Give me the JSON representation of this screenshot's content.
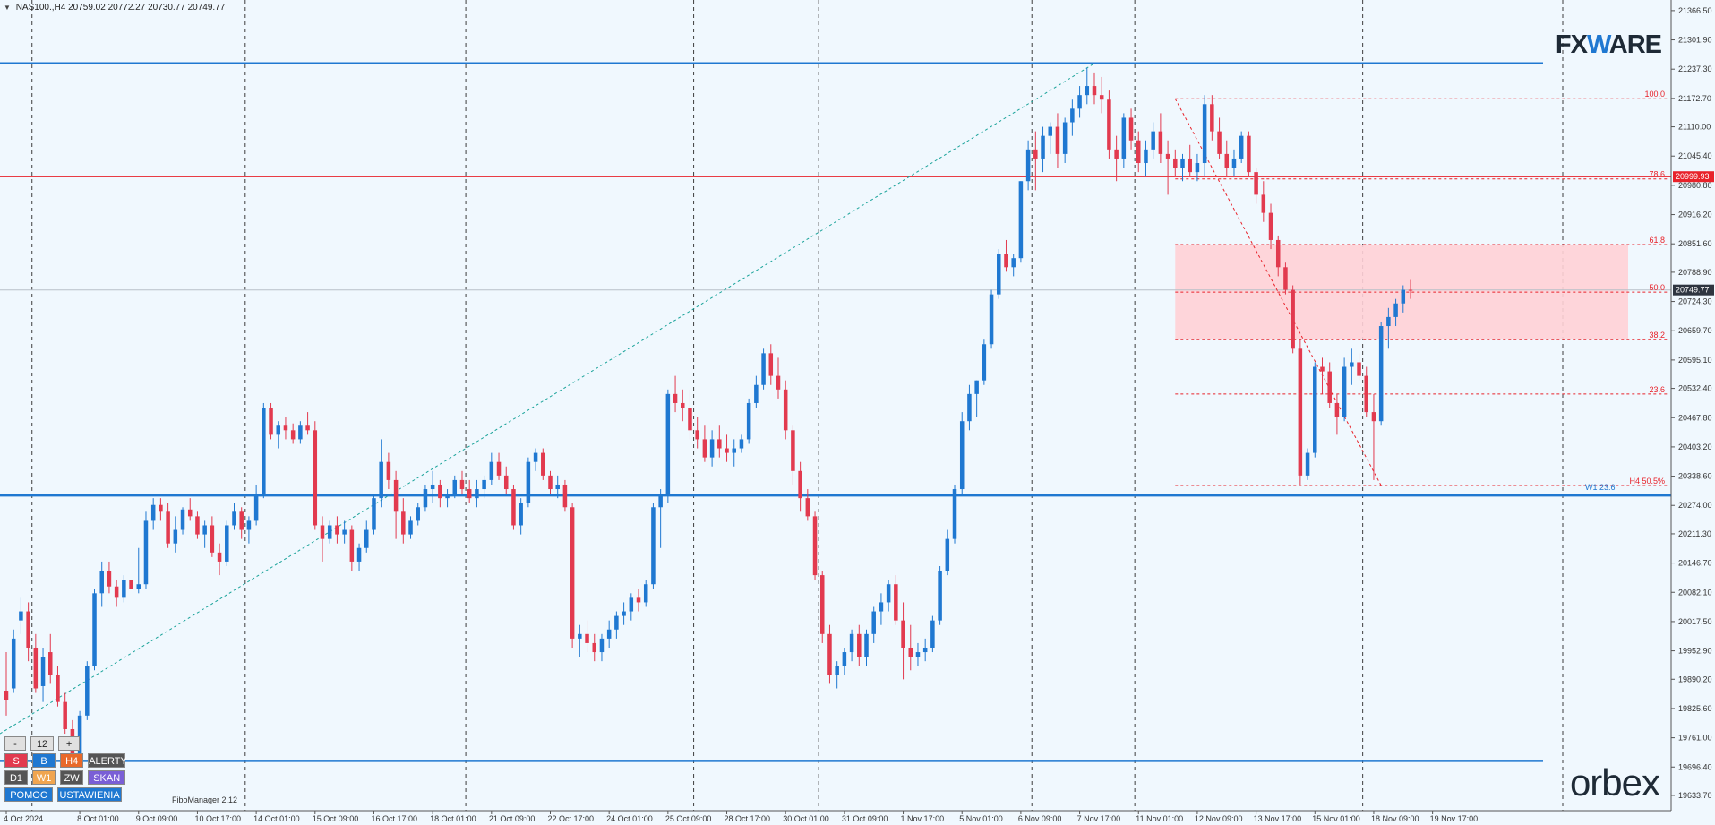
{
  "header": {
    "symbol": "NAS100.,H4",
    "open": "20759.02",
    "high": "20772.27",
    "low": "20730.77",
    "close": "20749.77"
  },
  "brand": {
    "fx_left": "FX",
    "fx_mid": "W",
    "fx_right": "ARE",
    "footer_logo": "orbex"
  },
  "chart_data": {
    "type": "candlestick",
    "ylim": [
      19600.0,
      21390.0
    ],
    "price_ticks": [
      "21366.50",
      "21301.90",
      "21237.30",
      "21172.70",
      "21110.00",
      "21045.40",
      "20980.80",
      "20916.20",
      "20851.60",
      "20788.90",
      "20724.30",
      "20659.70",
      "20595.10",
      "20532.40",
      "20467.80",
      "20403.20",
      "20338.60",
      "20274.00",
      "20211.30",
      "20146.70",
      "20082.10",
      "20017.50",
      "19952.90",
      "19890.20",
      "19825.60",
      "19761.00",
      "19696.40",
      "19633.70"
    ],
    "time_labels": [
      {
        "label": "4 Oct 2024",
        "bar": 0
      },
      {
        "label": "8 Oct 01:00",
        "bar": 10
      },
      {
        "label": "9 Oct 09:00",
        "bar": 18
      },
      {
        "label": "10 Oct 17:00",
        "bar": 26
      },
      {
        "label": "14 Oct 01:00",
        "bar": 34
      },
      {
        "label": "15 Oct 09:00",
        "bar": 42
      },
      {
        "label": "16 Oct 17:00",
        "bar": 50
      },
      {
        "label": "18 Oct 01:00",
        "bar": 58
      },
      {
        "label": "21 Oct 09:00",
        "bar": 66
      },
      {
        "label": "22 Oct 17:00",
        "bar": 74
      },
      {
        "label": "24 Oct 01:00",
        "bar": 82
      },
      {
        "label": "25 Oct 09:00",
        "bar": 90
      },
      {
        "label": "28 Oct 17:00",
        "bar": 98
      },
      {
        "label": "30 Oct 01:00",
        "bar": 106
      },
      {
        "label": "31 Oct 09:00",
        "bar": 114
      },
      {
        "label": "1 Nov 17:00",
        "bar": 122
      },
      {
        "label": "5 Nov 01:00",
        "bar": 130
      },
      {
        "label": "6 Nov 09:00",
        "bar": 138
      },
      {
        "label": "7 Nov 17:00",
        "bar": 146
      },
      {
        "label": "11 Nov 01:00",
        "bar": 154
      },
      {
        "label": "12 Nov 09:00",
        "bar": 162
      },
      {
        "label": "13 Nov 17:00",
        "bar": 170
      },
      {
        "label": "15 Nov 01:00",
        "bar": 178
      },
      {
        "label": "18 Nov 09:00",
        "bar": 186
      },
      {
        "label": "19 Nov 17:00",
        "bar": 194
      }
    ],
    "day_separator_bars": [
      4,
      33,
      63,
      94,
      111,
      140,
      154,
      185
    ],
    "candles": [
      [
        19865,
        19950,
        19810,
        19845
      ],
      [
        19870,
        20000,
        19860,
        19980
      ],
      [
        20020,
        20070,
        19990,
        20040
      ],
      [
        20040,
        20060,
        19930,
        19960
      ],
      [
        19960,
        19990,
        19860,
        19870
      ],
      [
        19875,
        19960,
        19840,
        19940
      ],
      [
        19950,
        19990,
        19880,
        19900
      ],
      [
        19900,
        19920,
        19830,
        19840
      ],
      [
        19840,
        19860,
        19770,
        19780
      ],
      [
        19780,
        19800,
        19710,
        19720
      ],
      [
        19725,
        19820,
        19710,
        19810
      ],
      [
        19810,
        19930,
        19800,
        19920
      ],
      [
        19920,
        20090,
        19910,
        20080
      ],
      [
        20080,
        20150,
        20050,
        20130
      ],
      [
        20130,
        20150,
        20080,
        20095
      ],
      [
        20095,
        20110,
        20050,
        20070
      ],
      [
        20070,
        20120,
        20060,
        20110
      ],
      [
        20110,
        20100,
        20090,
        20090
      ],
      [
        20090,
        20180,
        20080,
        20100
      ],
      [
        20100,
        20260,
        20090,
        20240
      ],
      [
        20240,
        20290,
        20220,
        20275
      ],
      [
        20275,
        20290,
        20240,
        20260
      ],
      [
        20260,
        20280,
        20180,
        20190
      ],
      [
        20190,
        20250,
        20170,
        20220
      ],
      [
        20220,
        20270,
        20210,
        20265
      ],
      [
        20265,
        20290,
        20240,
        20250
      ],
      [
        20250,
        20260,
        20200,
        20210
      ],
      [
        20210,
        20240,
        20180,
        20230
      ],
      [
        20230,
        20250,
        20160,
        20170
      ],
      [
        20170,
        20190,
        20120,
        20150
      ],
      [
        20150,
        20240,
        20140,
        20230
      ],
      [
        20230,
        20280,
        20220,
        20260
      ],
      [
        20260,
        20270,
        20200,
        20220
      ],
      [
        20220,
        20250,
        20190,
        20240
      ],
      [
        20240,
        20320,
        20230,
        20300
      ],
      [
        20300,
        20500,
        20290,
        20490
      ],
      [
        20490,
        20500,
        20420,
        20430
      ],
      [
        20430,
        20460,
        20400,
        20450
      ],
      [
        20450,
        20470,
        20420,
        20440
      ],
      [
        20440,
        20455,
        20410,
        20420
      ],
      [
        20420,
        20460,
        20410,
        20450
      ],
      [
        20450,
        20480,
        20430,
        20440
      ],
      [
        20440,
        20460,
        20220,
        20230
      ],
      [
        20230,
        20250,
        20150,
        20200
      ],
      [
        20200,
        20240,
        20190,
        20230
      ],
      [
        20230,
        20250,
        20190,
        20210
      ],
      [
        20210,
        20240,
        20190,
        20220
      ],
      [
        20220,
        20230,
        20130,
        20150
      ],
      [
        20150,
        20190,
        20130,
        20180
      ],
      [
        20180,
        20240,
        20170,
        20220
      ],
      [
        20220,
        20300,
        20210,
        20290
      ],
      [
        20290,
        20420,
        20270,
        20370
      ],
      [
        20370,
        20390,
        20310,
        20330
      ],
      [
        20330,
        20350,
        20200,
        20260
      ],
      [
        20260,
        20290,
        20190,
        20210
      ],
      [
        20210,
        20250,
        20200,
        20240
      ],
      [
        20240,
        20280,
        20230,
        20270
      ],
      [
        20270,
        20320,
        20260,
        20310
      ],
      [
        20310,
        20350,
        20280,
        20320
      ],
      [
        20320,
        20330,
        20270,
        20290
      ],
      [
        20290,
        20310,
        20270,
        20300
      ],
      [
        20300,
        20340,
        20290,
        20330
      ],
      [
        20330,
        20350,
        20300,
        20310
      ],
      [
        20310,
        20330,
        20280,
        20290
      ],
      [
        20290,
        20330,
        20270,
        20310
      ],
      [
        20310,
        20340,
        20290,
        20330
      ],
      [
        20330,
        20390,
        20320,
        20370
      ],
      [
        20370,
        20390,
        20330,
        20340
      ],
      [
        20340,
        20360,
        20300,
        20310
      ],
      [
        20310,
        20320,
        20220,
        20230
      ],
      [
        20230,
        20290,
        20210,
        20280
      ],
      [
        20280,
        20380,
        20270,
        20370
      ],
      [
        20370,
        20400,
        20350,
        20390
      ],
      [
        20390,
        20400,
        20330,
        20340
      ],
      [
        20340,
        20350,
        20300,
        20310
      ],
      [
        20310,
        20340,
        20290,
        20320
      ],
      [
        20320,
        20330,
        20260,
        20270
      ],
      [
        20270,
        20280,
        19960,
        19980
      ],
      [
        19980,
        20010,
        19940,
        19990
      ],
      [
        19990,
        20020,
        19950,
        19970
      ],
      [
        19970,
        19990,
        19930,
        19950
      ],
      [
        19950,
        19990,
        19930,
        19980
      ],
      [
        19980,
        20020,
        19960,
        20000
      ],
      [
        20000,
        20040,
        19980,
        20030
      ],
      [
        20030,
        20060,
        20010,
        20040
      ],
      [
        20040,
        20080,
        20020,
        20070
      ],
      [
        20070,
        20090,
        20040,
        20060
      ],
      [
        20060,
        20110,
        20050,
        20100
      ],
      [
        20100,
        20280,
        20090,
        20270
      ],
      [
        20270,
        20310,
        20180,
        20300
      ],
      [
        20300,
        20530,
        20280,
        20520
      ],
      [
        20520,
        20560,
        20480,
        20500
      ],
      [
        20500,
        20530,
        20460,
        20490
      ],
      [
        20490,
        20530,
        20420,
        20440
      ],
      [
        20440,
        20470,
        20400,
        20420
      ],
      [
        20420,
        20450,
        20370,
        20380
      ],
      [
        20380,
        20440,
        20360,
        20420
      ],
      [
        20420,
        20450,
        20380,
        20400
      ],
      [
        20400,
        20430,
        20370,
        20390
      ],
      [
        20390,
        20420,
        20360,
        20400
      ],
      [
        20400,
        20430,
        20390,
        20420
      ],
      [
        20420,
        20510,
        20410,
        20500
      ],
      [
        20500,
        20560,
        20490,
        20540
      ],
      [
        20540,
        20620,
        20530,
        20610
      ],
      [
        20610,
        20630,
        20540,
        20560
      ],
      [
        20560,
        20600,
        20510,
        20530
      ],
      [
        20530,
        20550,
        20420,
        20440
      ],
      [
        20440,
        20450,
        20320,
        20350
      ],
      [
        20350,
        20370,
        20260,
        20290
      ],
      [
        20290,
        20310,
        20240,
        20250
      ],
      [
        20250,
        20260,
        20110,
        20120
      ],
      [
        20120,
        20130,
        19970,
        19990
      ],
      [
        19990,
        20010,
        19880,
        19900
      ],
      [
        19900,
        19930,
        19870,
        19920
      ],
      [
        19920,
        19960,
        19900,
        19950
      ],
      [
        19950,
        20000,
        19930,
        19990
      ],
      [
        19990,
        20010,
        19920,
        19940
      ],
      [
        19940,
        20000,
        19920,
        19990
      ],
      [
        19990,
        20050,
        19970,
        20040
      ],
      [
        20040,
        20080,
        20010,
        20060
      ],
      [
        20060,
        20110,
        20040,
        20100
      ],
      [
        20100,
        20120,
        20010,
        20020
      ],
      [
        20020,
        20060,
        19890,
        19960
      ],
      [
        19960,
        20010,
        19910,
        19940
      ],
      [
        19940,
        19970,
        19920,
        19950
      ],
      [
        19950,
        19980,
        19930,
        19960
      ],
      [
        19960,
        20030,
        19950,
        20020
      ],
      [
        20020,
        20140,
        20010,
        20130
      ],
      [
        20130,
        20220,
        20120,
        20200
      ],
      [
        20200,
        20320,
        20190,
        20310
      ],
      [
        20310,
        20480,
        20300,
        20460
      ],
      [
        20460,
        20540,
        20440,
        20520
      ],
      [
        20520,
        20550,
        20470,
        20550
      ],
      [
        20550,
        20640,
        20540,
        20630
      ],
      [
        20630,
        20750,
        20620,
        20740
      ],
      [
        20740,
        20840,
        20730,
        20830
      ],
      [
        20830,
        20860,
        20790,
        20800
      ],
      [
        20800,
        20830,
        20780,
        20820
      ],
      [
        20820,
        20990,
        20810,
        20990
      ],
      [
        20990,
        21080,
        20970,
        21060
      ],
      [
        21060,
        21100,
        20970,
        21040
      ],
      [
        21040,
        21110,
        21010,
        21090
      ],
      [
        21090,
        21120,
        21050,
        21110
      ],
      [
        21110,
        21140,
        21020,
        21050
      ],
      [
        21050,
        21130,
        21030,
        21120
      ],
      [
        21120,
        21170,
        21090,
        21150
      ],
      [
        21150,
        21200,
        21130,
        21180
      ],
      [
        21180,
        21240,
        21160,
        21200
      ],
      [
        21200,
        21230,
        21160,
        21180
      ],
      [
        21180,
        21220,
        21140,
        21170
      ],
      [
        21170,
        21190,
        21040,
        21060
      ],
      [
        21060,
        21090,
        20990,
        21040
      ],
      [
        21040,
        21140,
        21020,
        21130
      ],
      [
        21130,
        21150,
        21060,
        21080
      ],
      [
        21080,
        21100,
        21010,
        21030
      ],
      [
        21030,
        21080,
        21000,
        21060
      ],
      [
        21060,
        21120,
        21040,
        21100
      ],
      [
        21100,
        21140,
        21030,
        21050
      ],
      [
        21050,
        21080,
        20960,
        21040
      ],
      [
        21040,
        21060,
        21000,
        21020
      ],
      [
        21020,
        21050,
        20990,
        21040
      ],
      [
        21040,
        21070,
        21000,
        21010
      ],
      [
        21010,
        21050,
        20990,
        21030
      ],
      [
        21030,
        21180,
        21000,
        21160
      ],
      [
        21160,
        21180,
        21080,
        21100
      ],
      [
        21100,
        21130,
        21040,
        21050
      ],
      [
        21050,
        21080,
        21000,
        21020
      ],
      [
        21020,
        21060,
        21000,
        21040
      ],
      [
        21040,
        21100,
        21030,
        21090
      ],
      [
        21090,
        21100,
        21000,
        21010
      ],
      [
        21010,
        21020,
        20940,
        20960
      ],
      [
        20960,
        20990,
        20900,
        20920
      ],
      [
        20920,
        20940,
        20840,
        20860
      ],
      [
        20860,
        20870,
        20780,
        20800
      ],
      [
        20800,
        20810,
        20740,
        20750
      ],
      [
        20750,
        20760,
        20610,
        20620
      ],
      [
        20620,
        20640,
        20320,
        20340
      ],
      [
        20340,
        20400,
        20330,
        20390
      ],
      [
        20390,
        20590,
        20380,
        20580
      ],
      [
        20580,
        20600,
        20520,
        20570
      ],
      [
        20570,
        20590,
        20490,
        20500
      ],
      [
        20500,
        20520,
        20430,
        20470
      ],
      [
        20470,
        20600,
        20460,
        20580
      ],
      [
        20580,
        20620,
        20540,
        20590
      ],
      [
        20590,
        20610,
        20550,
        20560
      ],
      [
        20560,
        20580,
        20470,
        20480
      ],
      [
        20480,
        20520,
        20330,
        20460
      ],
      [
        20460,
        20680,
        20450,
        20670
      ],
      [
        20670,
        20710,
        20620,
        20690
      ],
      [
        20690,
        20730,
        20670,
        20720
      ],
      [
        20720,
        20760,
        20700,
        20750
      ],
      [
        20750,
        20772,
        20730,
        20749
      ]
    ],
    "hlines_blue": [
      21250,
      20296,
      19710
    ],
    "hline_red": 20999.93,
    "grey_line": 20749.77,
    "fib": {
      "start_bar": 159,
      "end_x": 1863,
      "levels": [
        {
          "label": "100.0",
          "price": 21172
        },
        {
          "label": "78.6",
          "price": 20995
        },
        {
          "label": "61.8",
          "price": 20850
        },
        {
          "label": "50.0",
          "price": 20745
        },
        {
          "label": "38.2",
          "price": 20640
        },
        {
          "label": "23.6",
          "price": 20520
        },
        {
          "label": "H4 50.5%",
          "price": 20318
        }
      ],
      "extra_label": "W1 23.6",
      "zone": {
        "top": 20850,
        "bottom": 20640
      }
    },
    "price_tags": [
      {
        "value": "20999.93",
        "price": 20999.93,
        "color": "#e8222a"
      },
      {
        "value": "20749.77",
        "price": 20749.77,
        "color": "#2e3540"
      }
    ]
  },
  "panel": {
    "row1": [
      "-",
      "12",
      "+"
    ],
    "row2": [
      "S",
      "B",
      "H4",
      "ALERTY"
    ],
    "row3": [
      "D1",
      "W1",
      "ZW",
      "SKAN"
    ],
    "row4": [
      "POMOC",
      "USTAWIENIA"
    ],
    "fibo_manager": "FiboManager 2.12"
  },
  "colors": {
    "bull": "#1f78d1",
    "bear": "#e23a4f",
    "grid": "#3d3d3d",
    "bg": "#f0f8fe"
  }
}
